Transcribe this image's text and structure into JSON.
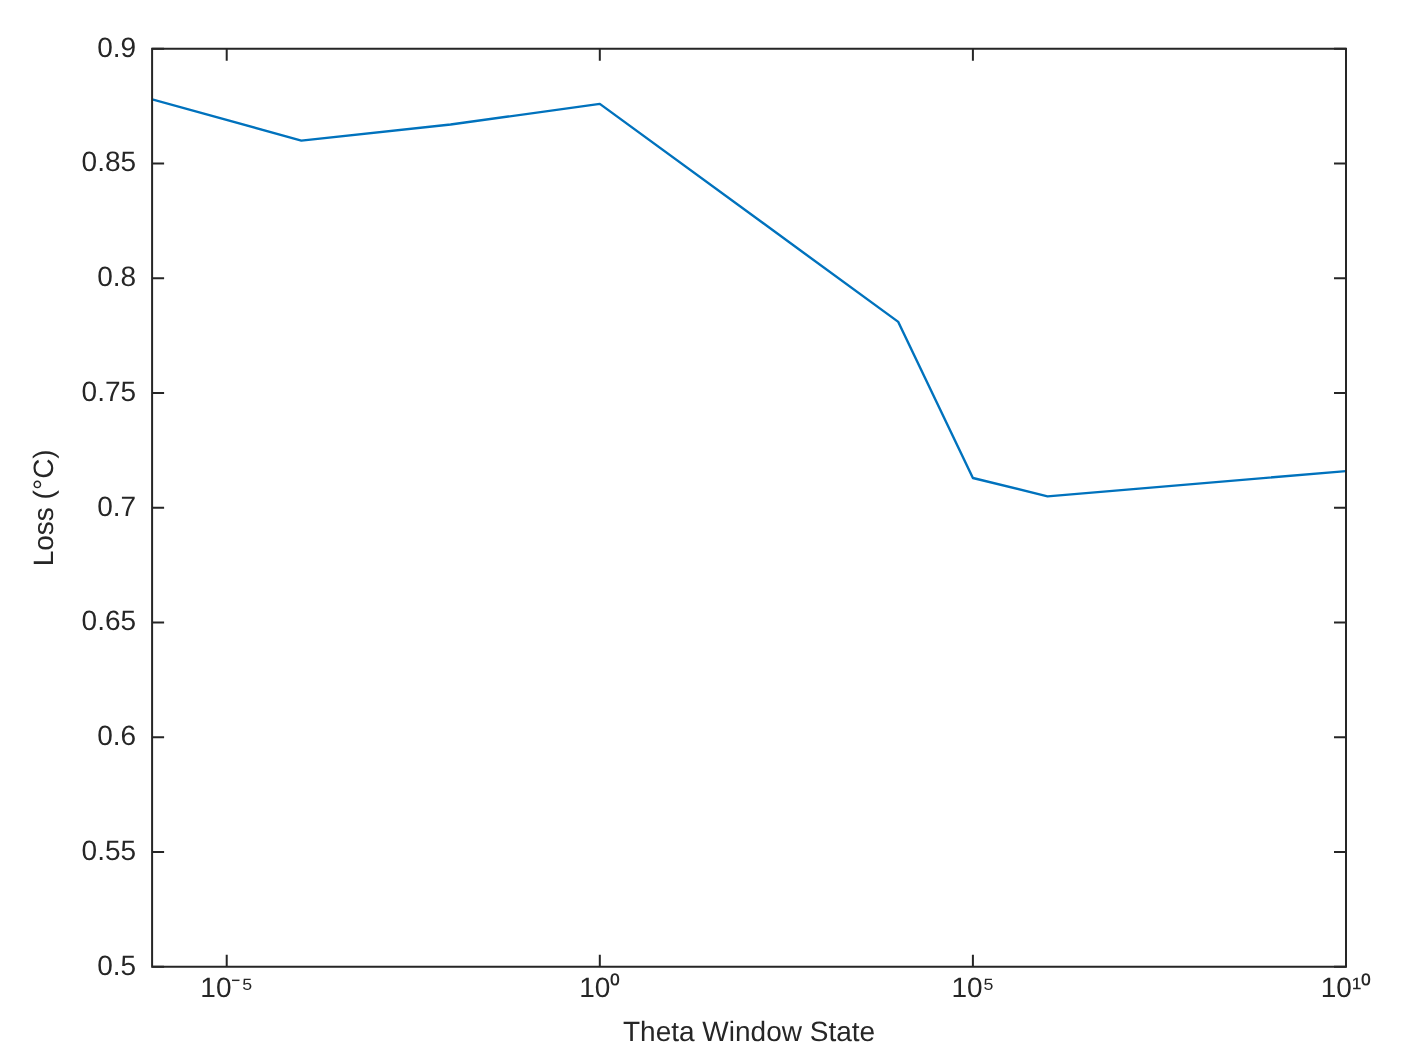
{
  "chart_data": {
    "type": "line",
    "xlabel": "Theta Window State",
    "ylabel": "Loss (°C)",
    "log": "x",
    "x": [
      1e-06,
      0.0001,
      0.01,
      1,
      10000.0,
      100000.0,
      1000000.0,
      10000000000.0
    ],
    "series": [
      {
        "color": "#0072bd",
        "values": [
          0.878,
          0.86,
          0.867,
          0.876,
          0.781,
          0.713,
          0.705,
          0.716
        ]
      }
    ],
    "xlim": [
      1e-06,
      10000000000.0
    ],
    "xticks": [
      {
        "value": 1e-05,
        "label": "10⁻⁵"
      },
      {
        "value": 1,
        "label": "10⁰"
      },
      {
        "value": 100000,
        "label": "10⁵"
      },
      {
        "value": 10000000000,
        "label": "10¹⁰"
      }
    ],
    "ylim": [
      0.5,
      0.9
    ],
    "yticks": [
      0.5,
      0.55,
      0.6,
      0.65,
      0.7,
      0.75,
      0.8,
      0.85,
      0.9
    ],
    "grid": false,
    "legend": false,
    "marker": "none",
    "line_style": "solid"
  }
}
